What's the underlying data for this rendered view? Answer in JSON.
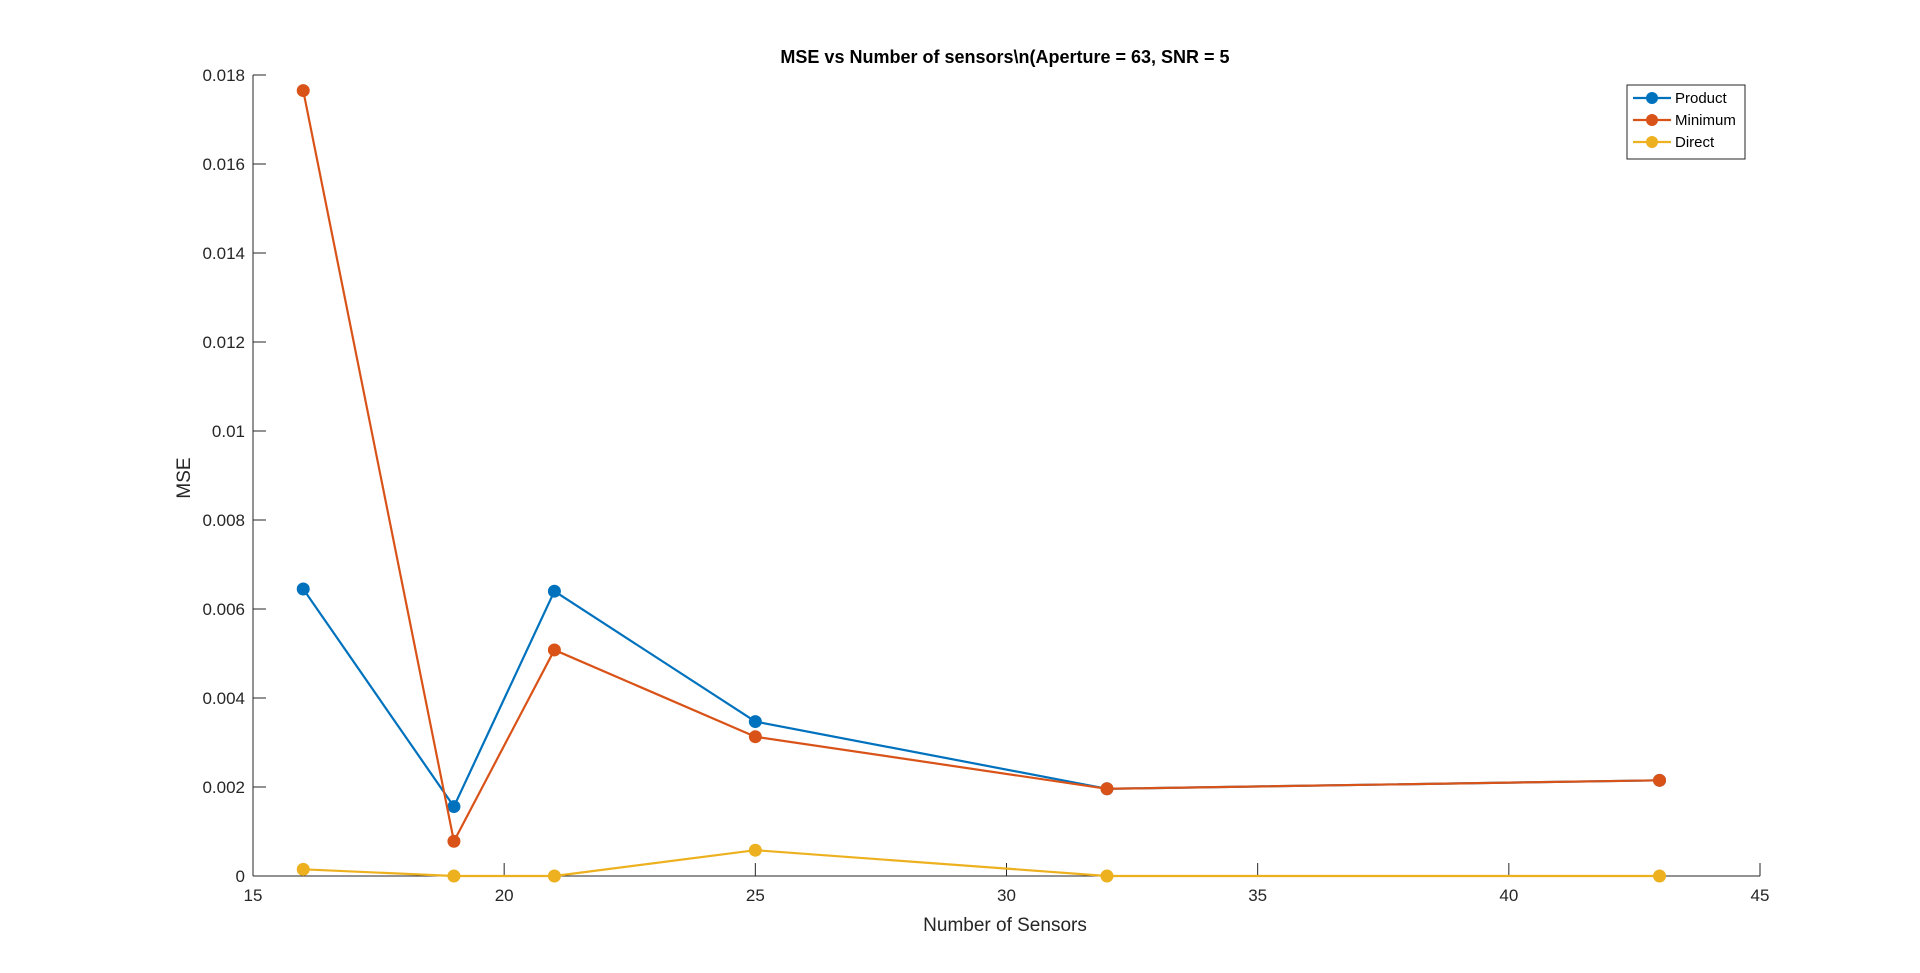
{
  "chart_data": {
    "type": "line",
    "title": "MSE vs Number of sensors\\n(Aperture = 63, SNR = 5",
    "xlabel": "Number of Sensors",
    "ylabel": "MSE",
    "xlim": [
      15,
      45
    ],
    "ylim": [
      0,
      0.018
    ],
    "xticks": [
      15,
      20,
      25,
      30,
      35,
      40,
      45
    ],
    "xtick_labels": [
      "15",
      "20",
      "25",
      "30",
      "35",
      "40",
      "45"
    ],
    "yticks": [
      0,
      0.002,
      0.004,
      0.006,
      0.008,
      0.01,
      0.012,
      0.014,
      0.016,
      0.018
    ],
    "ytick_labels": [
      "0",
      "0.002",
      "0.004",
      "0.006",
      "0.008",
      "0.01",
      "0.012",
      "0.014",
      "0.016",
      "0.018"
    ],
    "grid": false,
    "legend_position": "top-right",
    "x": [
      16,
      19,
      21,
      25,
      32,
      43
    ],
    "series": [
      {
        "name": "Product",
        "color": "#0072BD",
        "values": [
          0.00645,
          0.00156,
          0.0064,
          0.00347,
          0.00196,
          0.00215
        ]
      },
      {
        "name": "Minimum",
        "color": "#D95319",
        "values": [
          0.01765,
          0.00078,
          0.00508,
          0.00313,
          0.00196,
          0.00215
        ]
      },
      {
        "name": "Direct",
        "color": "#EDB120",
        "values": [
          0.00015,
          0.0,
          0.0,
          0.00058,
          0.0,
          0.0
        ]
      }
    ]
  }
}
